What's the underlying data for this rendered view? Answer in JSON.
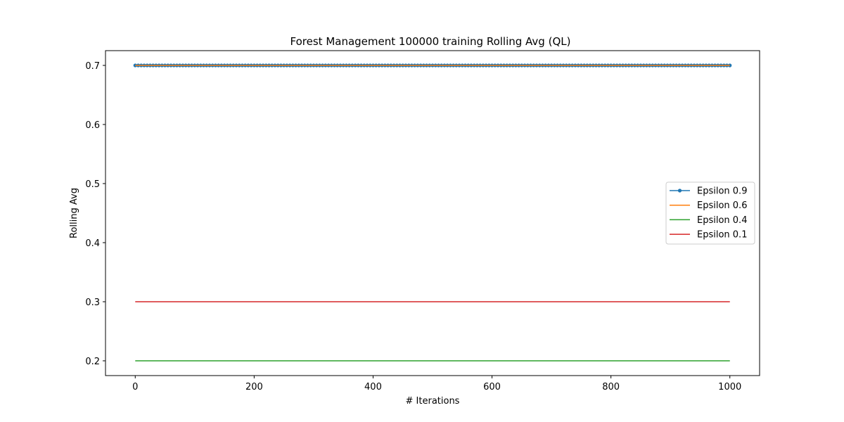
{
  "chart_data": {
    "type": "line",
    "title": "Forest Management 100000 training Rolling Avg (QL)",
    "xlabel": "# Iterations",
    "ylabel": "Rolling Avg",
    "xlim": [
      -50,
      1050
    ],
    "ylim": [
      0.175,
      0.725
    ],
    "xticks": [
      0,
      200,
      400,
      600,
      800,
      1000
    ],
    "xtick_labels": [
      "0",
      "200",
      "400",
      "600",
      "800",
      "1000"
    ],
    "yticks": [
      0.2,
      0.3,
      0.4,
      0.5,
      0.6,
      0.7
    ],
    "ytick_labels": [
      "0.2",
      "0.3",
      "0.4",
      "0.5",
      "0.6",
      "0.7"
    ],
    "grid": false,
    "legend_position": "center-right",
    "x_range": [
      0,
      1000
    ],
    "series": [
      {
        "name": "Epsilon 0.9",
        "color": "#1f77b4",
        "marker": "dot",
        "x": [
          0,
          1000
        ],
        "values": [
          0.7,
          0.7
        ]
      },
      {
        "name": "Epsilon 0.6",
        "color": "#ff7f0e",
        "marker": "none",
        "x": [
          0,
          1000
        ],
        "values": [
          0.7,
          0.7
        ]
      },
      {
        "name": "Epsilon 0.4",
        "color": "#2ca02c",
        "marker": "none",
        "x": [
          0,
          1000
        ],
        "values": [
          0.2,
          0.2
        ]
      },
      {
        "name": "Epsilon 0.1",
        "color": "#d62728",
        "marker": "none",
        "x": [
          0,
          1000
        ],
        "values": [
          0.3,
          0.3
        ]
      }
    ]
  }
}
